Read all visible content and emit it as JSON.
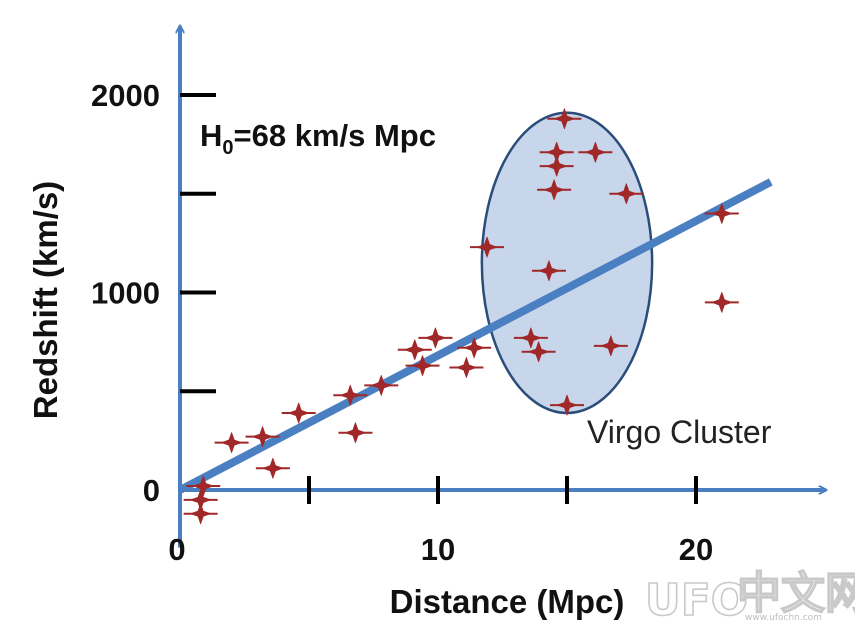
{
  "chart_data": {
    "type": "scatter",
    "title": "",
    "xlabel": "Distance (Mpc)",
    "ylabel": "Redshift (km/s)",
    "xlim": [
      0,
      25
    ],
    "ylim": [
      -150,
      2350
    ],
    "x_ticks": [
      0,
      10,
      20
    ],
    "x_minor_ticks": [
      5,
      15
    ],
    "y_ticks": [
      0,
      1000,
      2000
    ],
    "y_minor_ticks": [
      500,
      1500
    ],
    "x_tick_labels": [
      "0",
      "10",
      "20"
    ],
    "y_tick_labels": [
      "0",
      "1000",
      "2000"
    ],
    "grid": false,
    "legend": "none",
    "fit_line": {
      "label": "H",
      "label_sub": "0",
      "label_rest": "=68 km/s Mpc",
      "x": [
        0,
        22.9
      ],
      "y": [
        0,
        1560
      ]
    },
    "cluster": {
      "label": "Virgo Cluster",
      "center_x": 15.0,
      "center_y": 1150,
      "radius_x": 3.3,
      "radius_y": 760
    },
    "series": [
      {
        "points": [
          {
            "x": 0.9,
            "y": 20
          },
          {
            "x": 0.8,
            "y": -50
          },
          {
            "x": 0.8,
            "y": -120
          },
          {
            "x": 2.0,
            "y": 240
          },
          {
            "x": 3.2,
            "y": 270
          },
          {
            "x": 3.6,
            "y": 110
          },
          {
            "x": 4.6,
            "y": 390
          },
          {
            "x": 6.6,
            "y": 480
          },
          {
            "x": 6.8,
            "y": 290
          },
          {
            "x": 7.8,
            "y": 530
          },
          {
            "x": 9.1,
            "y": 710
          },
          {
            "x": 9.4,
            "y": 630
          },
          {
            "x": 9.9,
            "y": 770
          },
          {
            "x": 11.1,
            "y": 620
          },
          {
            "x": 11.4,
            "y": 720
          },
          {
            "x": 11.9,
            "y": 1230
          },
          {
            "x": 13.6,
            "y": 770
          },
          {
            "x": 13.9,
            "y": 700
          },
          {
            "x": 14.3,
            "y": 1110
          },
          {
            "x": 14.5,
            "y": 1520
          },
          {
            "x": 14.6,
            "y": 1640
          },
          {
            "x": 14.6,
            "y": 1710
          },
          {
            "x": 14.9,
            "y": 1880
          },
          {
            "x": 15.0,
            "y": 430
          },
          {
            "x": 16.1,
            "y": 1710
          },
          {
            "x": 16.7,
            "y": 730
          },
          {
            "x": 17.3,
            "y": 1500
          },
          {
            "x": 21.0,
            "y": 1400
          },
          {
            "x": 21.0,
            "y": 950
          }
        ]
      }
    ]
  },
  "colors": {
    "axis": "#4a7fc1",
    "fit_line": "#4a7fc1",
    "ellipse_fill": "#c8d6ec",
    "ellipse_stroke": "#2a4d7a",
    "marker": "#a02828",
    "tick": "#000000"
  },
  "watermark": {
    "brand": "UFO",
    "cn": "中文网",
    "site": "www.ufochn.com"
  }
}
